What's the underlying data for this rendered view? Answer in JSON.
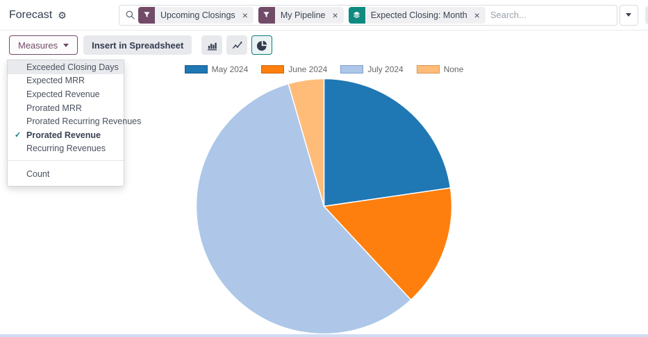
{
  "icons": {
    "gear": "⚙",
    "close": "×",
    "check": "✓"
  },
  "header": {
    "title": "Forecast",
    "search": {
      "placeholder": "Search...",
      "facets": [
        {
          "icon": "filter",
          "label": "Upcoming Closings",
          "color": "#714B67"
        },
        {
          "icon": "filter",
          "label": "My Pipeline",
          "color": "#714B67"
        },
        {
          "icon": "layers",
          "label": "Expected Closing: Month",
          "color": "#0F8A80"
        }
      ]
    },
    "view_switcher": [
      {
        "name": "kanban",
        "active": false
      },
      {
        "name": "graph",
        "active": true
      },
      {
        "name": "pivot",
        "active": false
      },
      {
        "name": "list",
        "active": false
      }
    ]
  },
  "toolbar": {
    "measures_label": "Measures",
    "insert_label": "Insert in Spreadsheet",
    "chart_types": [
      {
        "name": "bar",
        "active": false
      },
      {
        "name": "line",
        "active": false
      },
      {
        "name": "pie",
        "active": true
      }
    ]
  },
  "measures_menu": {
    "items": [
      {
        "label": "Exceeded Closing Days",
        "checked": false,
        "highlighted": true
      },
      {
        "label": "Expected MRR",
        "checked": false,
        "highlighted": false
      },
      {
        "label": "Expected Revenue",
        "checked": false,
        "highlighted": false
      },
      {
        "label": "Prorated MRR",
        "checked": false,
        "highlighted": false
      },
      {
        "label": "Prorated Recurring Revenues",
        "checked": false,
        "highlighted": false
      },
      {
        "label": "Prorated Revenue",
        "checked": true,
        "highlighted": false
      },
      {
        "label": "Recurring Revenues",
        "checked": false,
        "highlighted": false
      }
    ],
    "footer_item": {
      "label": "Count",
      "checked": false
    }
  },
  "chart_data": {
    "type": "pie",
    "title": "",
    "categories": [
      "May 2024",
      "June 2024",
      "July 2024",
      "None"
    ],
    "values": [
      22.7,
      15.4,
      57.4,
      4.5
    ],
    "unit": "percent of Prorated Revenue (estimated from slice angles)",
    "colors": [
      "#1f77b4",
      "#ff7f0e",
      "#aec7e8",
      "#ffbb78"
    ],
    "border_colors": [
      "#145a8c",
      "#c9650b",
      "#7c9ccb",
      "#d6964f"
    ],
    "legend_position": "top",
    "slice_border_color": "#ffffff"
  }
}
